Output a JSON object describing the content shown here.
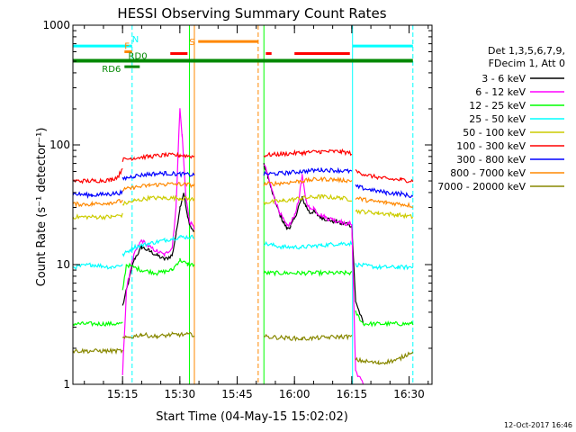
{
  "chart_data": {
    "type": "line",
    "title": "HESSI Observing Summary Count Rates",
    "xlabel": "Start Time (04-May-15 15:02:02)",
    "ylabel": "Count Rate (s⁻¹ detector⁻¹)",
    "xlim": [
      0,
      94
    ],
    "ylim": [
      1,
      1000
    ],
    "y_scale": "log",
    "x_unit": "minutes after 15:02:02",
    "x_ticks": [
      {
        "v": 13,
        "label": "15:15"
      },
      {
        "v": 28,
        "label": "15:30"
      },
      {
        "v": 43,
        "label": "15:45"
      },
      {
        "v": 58,
        "label": "16:00"
      },
      {
        "v": 73,
        "label": "16:15"
      },
      {
        "v": 88,
        "label": "16:30"
      }
    ],
    "y_ticks": [
      {
        "v": 1,
        "label": "1"
      },
      {
        "v": 10,
        "label": "10"
      },
      {
        "v": 100,
        "label": "100"
      },
      {
        "v": 1000,
        "label": "1000"
      }
    ],
    "legend_position": "right",
    "legend_header": [
      "Det 1,3,5,6,7,9,",
      "FDecim 1, Att 0"
    ],
    "series": [
      {
        "name": "3 - 6 keV",
        "color": "#000000",
        "segments": [
          [
            [
              13,
              4.5
            ],
            [
              14.5,
              7
            ],
            [
              16,
              11
            ],
            [
              18,
              14
            ],
            [
              20,
              13
            ],
            [
              22,
              12
            ],
            [
              24,
              11
            ],
            [
              26,
              12
            ],
            [
              27,
              18
            ],
            [
              28,
              30
            ],
            [
              29,
              40
            ],
            [
              30,
              25
            ],
            [
              31,
              20
            ],
            [
              31.8,
              19
            ]
          ],
          [
            [
              50,
              68
            ],
            [
              51,
              55
            ],
            [
              52,
              42
            ],
            [
              53,
              33
            ],
            [
              54,
              27
            ],
            [
              55,
              23
            ],
            [
              56,
              20
            ],
            [
              57,
              21
            ],
            [
              58,
              24
            ],
            [
              59,
              30
            ],
            [
              60,
              36
            ],
            [
              61,
              31
            ],
            [
              62,
              27
            ],
            [
              63,
              28
            ],
            [
              64,
              26
            ],
            [
              65,
              25
            ],
            [
              66,
              24
            ],
            [
              67,
              24
            ],
            [
              68,
              23
            ],
            [
              69,
              23
            ],
            [
              70,
              22
            ],
            [
              71,
              22
            ],
            [
              72,
              22
            ],
            [
              73,
              21
            ],
            [
              74,
              5
            ],
            [
              76,
              3.2
            ]
          ]
        ]
      },
      {
        "name": "6 - 12 keV",
        "color": "#ff00ff",
        "segments": [
          [
            [
              13,
              1.2
            ],
            [
              14,
              6
            ],
            [
              15,
              9
            ],
            [
              16,
              12
            ],
            [
              17,
              14
            ],
            [
              18,
              16
            ],
            [
              20,
              14
            ],
            [
              22,
              13
            ],
            [
              24,
              12
            ],
            [
              26,
              14
            ],
            [
              27,
              30
            ],
            [
              27.5,
              80
            ],
            [
              28,
              200
            ],
            [
              28.6,
              120
            ],
            [
              29.5,
              40
            ],
            [
              30.5,
              23
            ],
            [
              31.8,
              20
            ]
          ],
          [
            [
              50,
              70
            ],
            [
              51,
              56
            ],
            [
              52,
              43
            ],
            [
              53,
              34
            ],
            [
              54,
              28
            ],
            [
              55,
              24
            ],
            [
              56,
              21
            ],
            [
              57,
              22
            ],
            [
              58,
              26
            ],
            [
              59,
              33
            ],
            [
              60,
              55
            ],
            [
              61,
              35
            ],
            [
              62,
              29
            ],
            [
              63,
              30
            ],
            [
              64,
              27
            ],
            [
              65,
              26
            ],
            [
              66,
              25
            ],
            [
              67,
              24
            ],
            [
              68,
              24
            ],
            [
              69,
              23
            ],
            [
              70,
              23
            ],
            [
              71,
              22
            ],
            [
              72,
              22
            ],
            [
              73,
              22
            ],
            [
              74,
              1.3
            ],
            [
              76,
              1.0
            ]
          ]
        ]
      },
      {
        "name": "12 - 25 keV",
        "color": "#00ff00",
        "segments": [
          [
            [
              0,
              3.2
            ],
            [
              13,
              3.2
            ]
          ],
          [
            [
              13,
              6
            ],
            [
              14,
              10
            ],
            [
              18,
              9
            ],
            [
              22,
              8.5
            ],
            [
              26,
              9
            ],
            [
              28,
              11
            ],
            [
              30,
              10
            ],
            [
              31.8,
              10
            ]
          ],
          [
            [
              50,
              8.5
            ],
            [
              60,
              8.5
            ],
            [
              70,
              8.5
            ],
            [
              73,
              8.5
            ]
          ],
          [
            [
              74,
              4
            ],
            [
              76,
              3.2
            ],
            [
              89,
              3.2
            ]
          ]
        ]
      },
      {
        "name": "25 - 50 keV",
        "color": "#00ffff",
        "segments": [
          [
            [
              0,
              9.5
            ],
            [
              5,
              10
            ],
            [
              10,
              9.5
            ],
            [
              13,
              10
            ]
          ],
          [
            [
              13,
              12
            ],
            [
              16,
              14
            ],
            [
              20,
              15
            ],
            [
              24,
              16
            ],
            [
              28,
              17
            ],
            [
              31.8,
              17
            ]
          ],
          [
            [
              50,
              15
            ],
            [
              55,
              14
            ],
            [
              60,
              14
            ],
            [
              65,
              14.5
            ],
            [
              70,
              15
            ],
            [
              73,
              15
            ]
          ],
          [
            [
              74,
              10
            ],
            [
              80,
              9.5
            ],
            [
              85,
              9.5
            ],
            [
              89,
              9.5
            ]
          ]
        ]
      },
      {
        "name": "50 - 100 keV",
        "color": "#cccc00",
        "segments": [
          [
            [
              0,
              25
            ],
            [
              10,
              25
            ],
            [
              13,
              26
            ]
          ],
          [
            [
              13,
              32
            ],
            [
              16,
              34
            ],
            [
              20,
              36
            ],
            [
              24,
              36
            ],
            [
              28,
              36
            ],
            [
              31.8,
              35
            ]
          ],
          [
            [
              50,
              33
            ],
            [
              55,
              34
            ],
            [
              60,
              36
            ],
            [
              65,
              37
            ],
            [
              70,
              36
            ],
            [
              73,
              35
            ]
          ],
          [
            [
              74,
              28
            ],
            [
              80,
              27
            ],
            [
              85,
              26
            ],
            [
              89,
              25
            ]
          ]
        ]
      },
      {
        "name": "100 - 300 keV",
        "color": "#ff0000",
        "segments": [
          [
            [
              0,
              50
            ],
            [
              5,
              50
            ],
            [
              10,
              51
            ],
            [
              12,
              55
            ],
            [
              13,
              65
            ]
          ],
          [
            [
              13,
              75
            ],
            [
              16,
              78
            ],
            [
              20,
              80
            ],
            [
              24,
              82
            ],
            [
              28,
              82
            ],
            [
              31.8,
              80
            ]
          ],
          [
            [
              50,
              82
            ],
            [
              55,
              84
            ],
            [
              60,
              86
            ],
            [
              65,
              88
            ],
            [
              70,
              88
            ],
            [
              73,
              85
            ]
          ],
          [
            [
              74,
              60
            ],
            [
              78,
              55
            ],
            [
              82,
              52
            ],
            [
              86,
              51
            ],
            [
              89,
              50
            ]
          ]
        ]
      },
      {
        "name": "300 - 800 keV",
        "color": "#0000ff",
        "segments": [
          [
            [
              0,
              39
            ],
            [
              5,
              38
            ],
            [
              10,
              39
            ],
            [
              13,
              40
            ]
          ],
          [
            [
              13,
              52
            ],
            [
              16,
              55
            ],
            [
              20,
              57
            ],
            [
              24,
              58
            ],
            [
              28,
              57
            ],
            [
              31.8,
              56
            ]
          ],
          [
            [
              50,
              57
            ],
            [
              55,
              58
            ],
            [
              60,
              60
            ],
            [
              65,
              62
            ],
            [
              70,
              61
            ],
            [
              73,
              60
            ]
          ],
          [
            [
              74,
              45
            ],
            [
              78,
              42
            ],
            [
              82,
              40
            ],
            [
              86,
              39
            ],
            [
              89,
              37
            ]
          ]
        ]
      },
      {
        "name": "800 - 7000 keV",
        "color": "#ff8800",
        "segments": [
          [
            [
              0,
              32
            ],
            [
              5,
              32
            ],
            [
              10,
              33
            ],
            [
              13,
              34
            ]
          ],
          [
            [
              13,
              42
            ],
            [
              16,
              44
            ],
            [
              20,
              46
            ],
            [
              24,
              47
            ],
            [
              28,
              47
            ],
            [
              31.8,
              46
            ]
          ],
          [
            [
              50,
              47
            ],
            [
              55,
              48
            ],
            [
              60,
              50
            ],
            [
              65,
              52
            ],
            [
              70,
              51
            ],
            [
              73,
              50
            ]
          ],
          [
            [
              74,
              36
            ],
            [
              78,
              34
            ],
            [
              82,
              33
            ],
            [
              86,
              32
            ],
            [
              89,
              31
            ]
          ]
        ]
      },
      {
        "name": "7000 - 20000 keV",
        "color": "#888800",
        "segments": [
          [
            [
              0,
              1.9
            ],
            [
              13,
              1.9
            ]
          ],
          [
            [
              13,
              2.4
            ],
            [
              18,
              2.6
            ],
            [
              22,
              2.5
            ],
            [
              26,
              2.6
            ],
            [
              31.8,
              2.6
            ]
          ],
          [
            [
              50,
              2.5
            ],
            [
              60,
              2.4
            ],
            [
              70,
              2.5
            ],
            [
              73,
              2.5
            ]
          ],
          [
            [
              74,
              1.6
            ],
            [
              80,
              1.5
            ],
            [
              85,
              1.6
            ],
            [
              89,
              1.9
            ]
          ]
        ]
      }
    ],
    "top_bars": [
      {
        "label": "N",
        "color": "#00ffff",
        "y": 670,
        "spans": [
          [
            0,
            15.5
          ],
          [
            73.2,
            89
          ]
        ]
      },
      {
        "label": "F",
        "color": "#ff8800",
        "y": 600,
        "spans": [
          [
            13.5,
            15.5
          ]
        ]
      },
      {
        "label": "S",
        "color": "#ff8800",
        "y": 730,
        "spans": [
          [
            32.8,
            48.5
          ]
        ]
      },
      {
        "label": "",
        "color": "#ff0000",
        "y": 580,
        "spans": [
          [
            25.5,
            30
          ],
          [
            50.5,
            52
          ],
          [
            58,
            72.5
          ]
        ]
      },
      {
        "label": "RD0",
        "color": "#008800",
        "y": 505,
        "spans": [
          [
            0,
            89
          ]
        ]
      },
      {
        "label": "RD6",
        "color": "#008800",
        "y": 450,
        "spans": [
          [
            13.5,
            17.5
          ]
        ]
      }
    ],
    "vlines": [
      {
        "x": 0,
        "color": "#00ffff",
        "dash": false
      },
      {
        "x": 15.5,
        "color": "#00ffff",
        "dash": true
      },
      {
        "x": 30.5,
        "color": "#00ff00",
        "dash": false
      },
      {
        "x": 31.8,
        "color": "#ff8800",
        "dash": false
      },
      {
        "x": 48.5,
        "color": "#ff8800",
        "dash": true
      },
      {
        "x": 50,
        "color": "#00ff00",
        "dash": false
      },
      {
        "x": 73.2,
        "color": "#00ffff",
        "dash": false
      },
      {
        "x": 89,
        "color": "#00ffff",
        "dash": true
      }
    ]
  },
  "footer": {
    "timestamp": "12-Oct-2017 16:46"
  }
}
